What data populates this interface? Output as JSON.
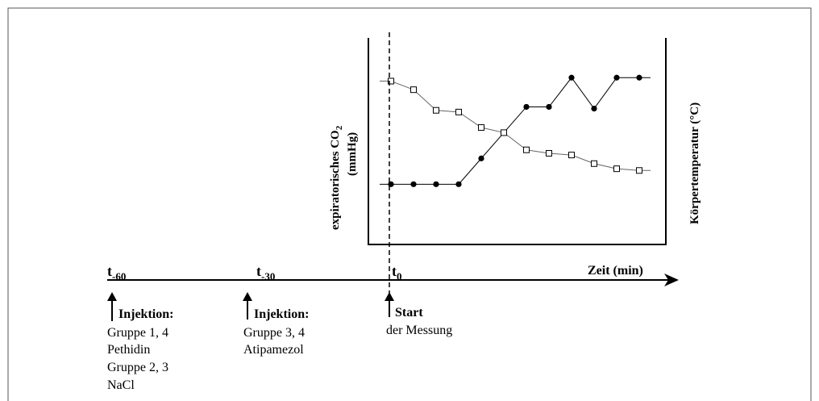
{
  "labels": {
    "y_left": "expiratorisches CO",
    "y_left_sub": "2",
    "y_left_unit": "(mmHg)",
    "y_right": "Körpertemperatur (°C)",
    "time_axis": "Zeit (min)"
  },
  "timeline": [
    {
      "t": "t",
      "sub": "-60",
      "head": "Injektion:",
      "lines": [
        "Gruppe 1, 4",
        "Pethidin",
        "Gruppe 2, 3",
        "NaCl"
      ]
    },
    {
      "t": "t",
      "sub": "-30",
      "head": "Injektion:",
      "lines": [
        "Gruppe 3, 4",
        "Atipamezol"
      ]
    },
    {
      "t": "t",
      "sub": "0",
      "head": "Start",
      "lines": [
        "der Messung"
      ]
    }
  ],
  "chart_data": {
    "type": "line",
    "x": [
      1,
      2,
      3,
      4,
      5,
      6,
      7,
      8,
      9,
      10,
      11,
      12
    ],
    "series": [
      {
        "marker": "filled-circle",
        "values": [
          0.36,
          0.36,
          0.36,
          0.36,
          0.51,
          0.66,
          0.81,
          0.81,
          0.98,
          0.8,
          0.98,
          0.98
        ]
      },
      {
        "marker": "open-square",
        "values": [
          0.96,
          0.91,
          0.79,
          0.78,
          0.69,
          0.66,
          0.56,
          0.54,
          0.53,
          0.48,
          0.45,
          0.44
        ]
      }
    ],
    "grid": false,
    "legend": "none"
  }
}
